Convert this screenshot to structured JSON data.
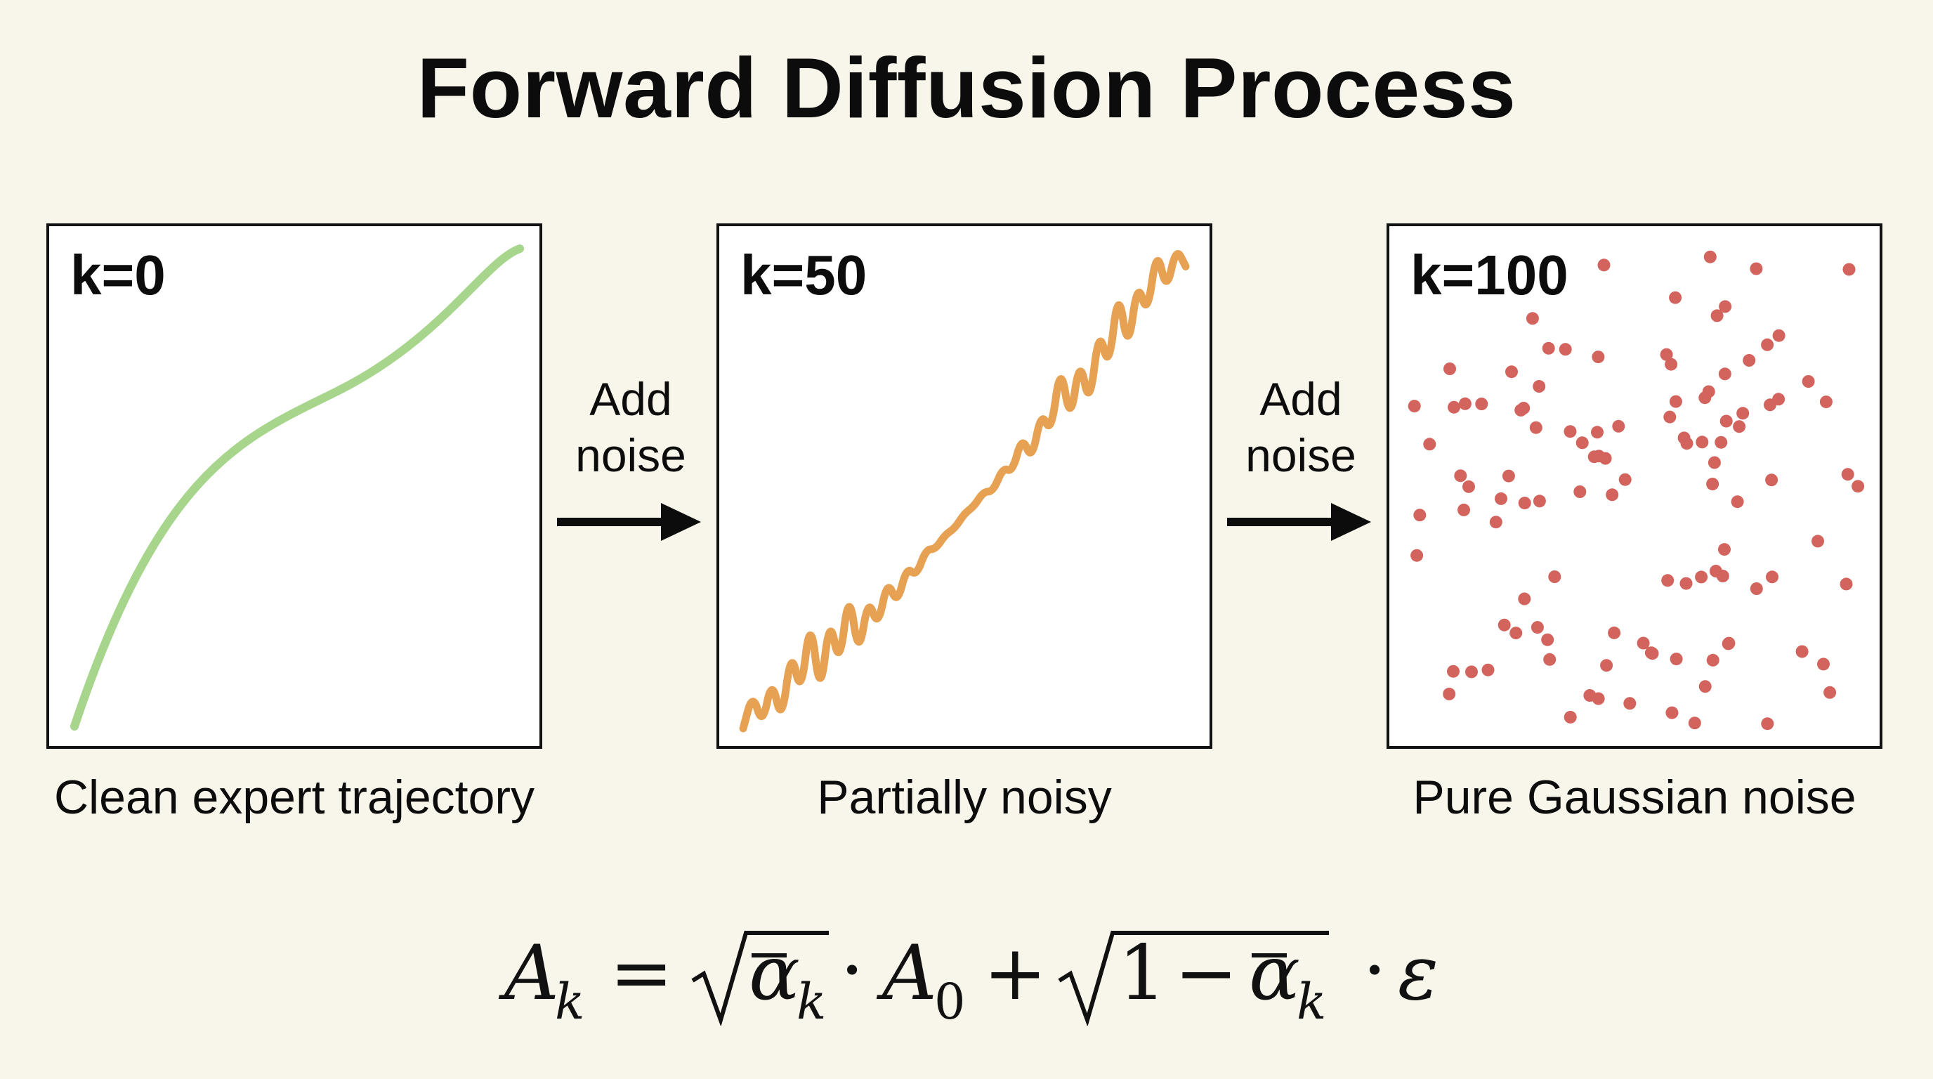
{
  "title": "Forward Diffusion Process",
  "panels": [
    {
      "label": "k=0",
      "caption": "Clean expert trajectory",
      "style": "smooth-curve",
      "color": "#a6d58b"
    },
    {
      "label": "k=50",
      "caption": "Partially noisy",
      "style": "noisy-curve",
      "color": "#e7a153"
    },
    {
      "label": "k=100",
      "caption": "Pure Gaussian noise",
      "style": "scattered-points",
      "color": "#d2635d"
    }
  ],
  "arrows": [
    {
      "line1": "Add",
      "line2": "noise"
    },
    {
      "line1": "Add",
      "line2": "noise"
    }
  ],
  "equation": {
    "lhs": "A",
    "lhs_sub": "k",
    "equals": "=",
    "alpha": "α",
    "alpha_sub": "k",
    "dot": "·",
    "term": "A",
    "term_sub": "0",
    "plus": "+",
    "one": "1",
    "minus": "−",
    "epsilon": "ε"
  },
  "colors": {
    "background": "#f8f6ea",
    "panel_border": "#111111",
    "clean": "#a6d58b",
    "partial": "#e7a153",
    "noise": "#d2635d"
  }
}
